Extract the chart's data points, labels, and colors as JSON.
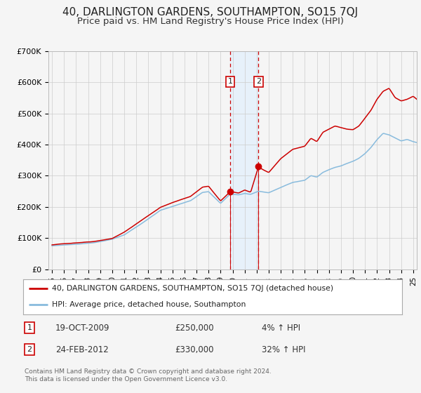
{
  "title": "40, DARLINGTON GARDENS, SOUTHAMPTON, SO15 7QJ",
  "subtitle": "Price paid vs. HM Land Registry's House Price Index (HPI)",
  "title_fontsize": 11,
  "subtitle_fontsize": 9.5,
  "background_color": "#f5f5f5",
  "plot_bg_color": "#f5f5f5",
  "grid_color": "#cccccc",
  "red_line_color": "#cc0000",
  "blue_line_color": "#88bbdd",
  "point1_date_num": 2009.8,
  "point2_date_num": 2012.15,
  "point1_value": 250000,
  "point2_value": 330000,
  "shade_x1": 2009.8,
  "shade_x2": 2012.15,
  "vline_color": "#cc0000",
  "shade_color": "#ddeeff",
  "shade_alpha": 0.55,
  "ylim": [
    0,
    700000
  ],
  "xlim_start": 1994.7,
  "xlim_end": 2025.3,
  "ytick_values": [
    0,
    100000,
    200000,
    300000,
    400000,
    500000,
    600000,
    700000
  ],
  "ytick_labels": [
    "£0",
    "£100K",
    "£200K",
    "£300K",
    "£400K",
    "£500K",
    "£600K",
    "£700K"
  ],
  "xtick_years": [
    1995,
    1996,
    1997,
    1998,
    1999,
    2000,
    2001,
    2002,
    2003,
    2004,
    2005,
    2006,
    2007,
    2008,
    2009,
    2010,
    2011,
    2012,
    2013,
    2014,
    2015,
    2016,
    2017,
    2018,
    2019,
    2020,
    2021,
    2022,
    2023,
    2024,
    2025
  ],
  "legend_red_label": "40, DARLINGTON GARDENS, SOUTHAMPTON, SO15 7QJ (detached house)",
  "legend_blue_label": "HPI: Average price, detached house, Southampton",
  "note1_num": "1",
  "note1_date": "19-OCT-2009",
  "note1_price": "£250,000",
  "note1_hpi": "4% ↑ HPI",
  "note2_num": "2",
  "note2_date": "24-FEB-2012",
  "note2_price": "£330,000",
  "note2_hpi": "32% ↑ HPI",
  "copyright": "Contains HM Land Registry data © Crown copyright and database right 2024.\nThis data is licensed under the Open Government Licence v3.0."
}
